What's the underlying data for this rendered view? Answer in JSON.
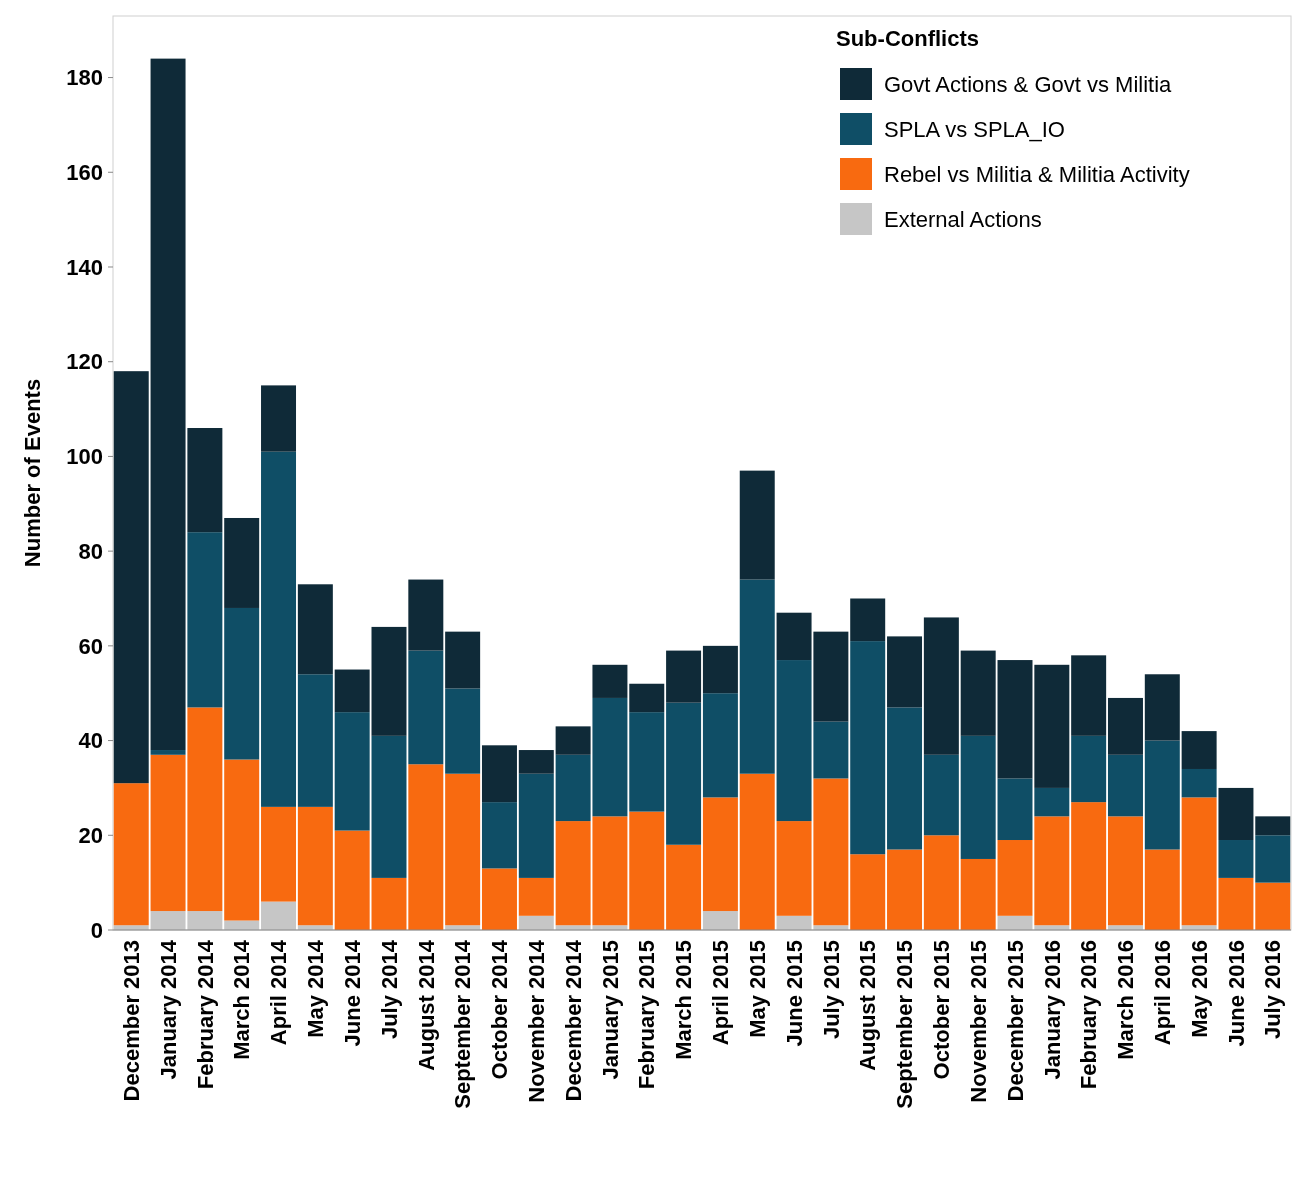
{
  "chart_data": {
    "type": "bar",
    "stacked": true,
    "ylabel": "Number of Events",
    "legend_title": "Sub-Conflicts",
    "legend": "top right",
    "grid": false,
    "categories": [
      "December 2013",
      "January 2014",
      "February 2014",
      "March 2014",
      "April 2014",
      "May 2014",
      "June 2014",
      "July 2014",
      "August 2014",
      "September 2014",
      "October 2014",
      "November 2014",
      "December 2014",
      "January 2015",
      "February 2015",
      "March 2015",
      "April 2015",
      "May 2015",
      "June 2015",
      "July 2015",
      "August 2015",
      "September 2015",
      "October 2015",
      "November 2015",
      "December 2015",
      "January 2016",
      "February 2016",
      "March 2016",
      "April 2016",
      "May 2016",
      "June 2016",
      "July 2016"
    ],
    "ylim": [
      0,
      193
    ],
    "yticks": [
      0,
      20,
      40,
      60,
      80,
      100,
      120,
      140,
      160,
      180
    ],
    "series": [
      {
        "name": "External Actions",
        "color": "#c6c6c6",
        "values": [
          1,
          4,
          4,
          2,
          6,
          1,
          0,
          0,
          0,
          1,
          0,
          3,
          1,
          1,
          0,
          0,
          4,
          0,
          3,
          1,
          0,
          0,
          0,
          0,
          3,
          1,
          0,
          1,
          0,
          1,
          0,
          0
        ]
      },
      {
        "name": "Rebel vs Militia & Militia Activity",
        "color": "#f86a10",
        "values": [
          30,
          33,
          43,
          34,
          20,
          25,
          21,
          11,
          35,
          32,
          13,
          8,
          22,
          23,
          25,
          18,
          24,
          33,
          20,
          31,
          16,
          17,
          20,
          15,
          16,
          23,
          27,
          23,
          17,
          27,
          11,
          10
        ]
      },
      {
        "name": "SPLA vs SPLA_IO",
        "color": "#0f4e66",
        "values": [
          0,
          1,
          37,
          32,
          75,
          28,
          25,
          30,
          24,
          18,
          14,
          22,
          14,
          25,
          21,
          30,
          22,
          41,
          34,
          12,
          45,
          30,
          17,
          26,
          13,
          6,
          14,
          13,
          23,
          6,
          8,
          10
        ]
      },
      {
        "name": "Govt Actions & Govt vs Militia",
        "color": "#0f2a38",
        "values": [
          87,
          146,
          22,
          19,
          14,
          19,
          9,
          23,
          15,
          12,
          12,
          5,
          6,
          7,
          6,
          11,
          10,
          23,
          10,
          19,
          9,
          15,
          29,
          18,
          25,
          26,
          17,
          12,
          14,
          8,
          11,
          4
        ]
      }
    ]
  }
}
